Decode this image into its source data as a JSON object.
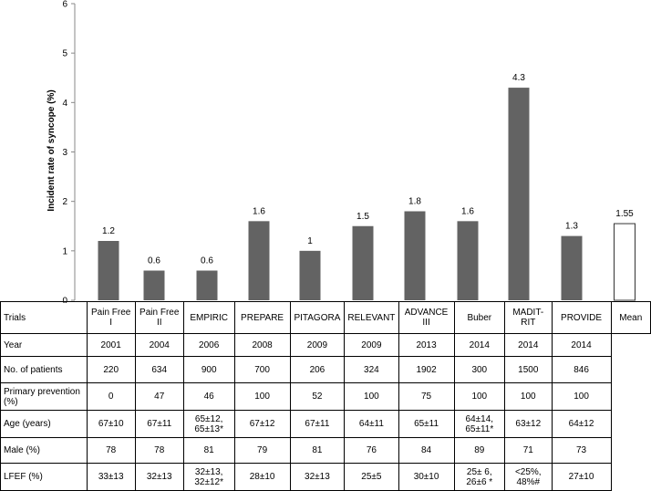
{
  "chart_data": {
    "type": "bar",
    "ylabel": "Incident rate of syncope (%)",
    "xlabel": "",
    "ylim": [
      0,
      6
    ],
    "yticks": [
      "0",
      "1",
      "2",
      "3",
      "4",
      "5",
      "6"
    ],
    "grid": false,
    "categories": [
      "Pain Free I",
      "Pain Free II",
      "EMPIRIC",
      "PREPARE",
      "PITAGORA",
      "RELEVANT",
      "ADVANCE III",
      "Buber",
      "MADIT-RIT",
      "PROVIDE",
      "Mean"
    ],
    "values": [
      1.2,
      0.6,
      0.6,
      1.6,
      1,
      1.5,
      1.8,
      1.6,
      4.3,
      1.3,
      1.55
    ],
    "value_labels": [
      "1.2",
      "0.6",
      "0.6",
      "1.6",
      "1",
      "1.5",
      "1.8",
      "1.6",
      "4.3",
      "1.3",
      "1.55"
    ],
    "colors": {
      "bar": "#636363",
      "mean_bar": "#ffffff",
      "mean_edge": "#333333"
    }
  },
  "table": {
    "header_label": "Trials",
    "headers": [
      "Pain Free I",
      "Pain Free II",
      "EMPIRIC",
      "PREPARE",
      "PITAGORA",
      "RELEVANT",
      "ADVANCE III",
      "Buber",
      "MADIT-RIT",
      "PROVIDE",
      "Mean"
    ],
    "rows": [
      {
        "label": "Year",
        "cells": [
          "2001",
          "2004",
          "2006",
          "2008",
          "2009",
          "2009",
          "2013",
          "2014",
          "2014",
          "2014"
        ]
      },
      {
        "label": "No. of patients",
        "cells": [
          "220",
          "634",
          "900",
          "700",
          "206",
          "324",
          "1902",
          "300",
          "1500",
          "846"
        ]
      },
      {
        "label": "Primary prevention (%)",
        "cells": [
          "0",
          "47",
          "46",
          "100",
          "52",
          "100",
          "75",
          "100",
          "100",
          "100"
        ]
      },
      {
        "label": "Age (years)",
        "cells": [
          "67±10",
          "67±11",
          "65±12, 65±13*",
          "67±12",
          "67±11",
          "64±11",
          "65±11",
          "64±14, 65±11*",
          "63±12",
          "64±12"
        ]
      },
      {
        "label": "Male (%)",
        "cells": [
          "78",
          "78",
          "81",
          "79",
          "81",
          "76",
          "84",
          "89",
          "71",
          "73"
        ]
      },
      {
        "label": "LFEF (%)",
        "cells": [
          "33±13",
          "32±13",
          "32±13, 32±12*",
          "28±10",
          "32±13",
          "25±5",
          "30±10",
          "25± 6, 26±6 *",
          "<25%, 48%#",
          "27±10"
        ]
      }
    ]
  }
}
